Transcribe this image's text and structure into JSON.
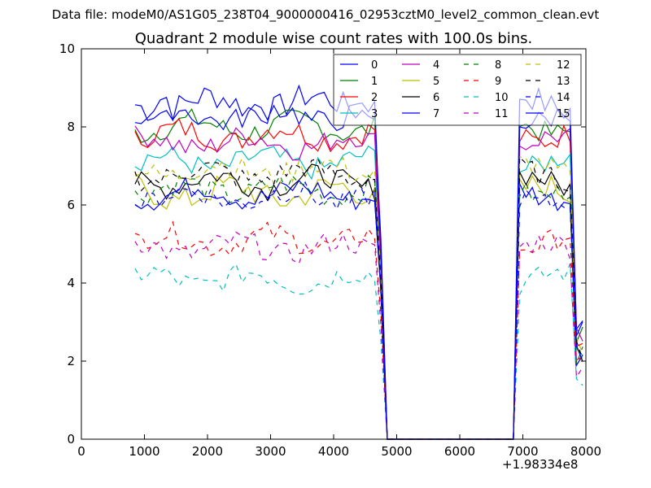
{
  "suptitle": "Data file: modeM0/AS1G05_238T04_9000000416_02953cztM0_level2_common_clean.evt",
  "chart_data": {
    "type": "line",
    "title": "Quadrant 2 module wise count rates with 100.0s bins.",
    "xlabel": "",
    "ylabel": "",
    "x_offset_label": "+1.98334e8",
    "xlim": [
      0,
      8000
    ],
    "ylim": [
      0,
      10
    ],
    "xticks": [
      0,
      1000,
      2000,
      3000,
      4000,
      5000,
      6000,
      7000,
      8000
    ],
    "yticks": [
      0,
      2,
      4,
      6,
      8,
      10
    ],
    "grid": false,
    "legend_placement": "top-right",
    "legend_columns": 4,
    "x_start": 850,
    "x_step": 100,
    "series": [
      {
        "name": "0",
        "color": "#0000ff",
        "dash": "solid",
        "base": 8.6,
        "amp": 0.35
      },
      {
        "name": "1",
        "color": "#007f00",
        "dash": "solid",
        "base": 8.0,
        "amp": 0.3
      },
      {
        "name": "2",
        "color": "#ff0000",
        "dash": "solid",
        "base": 7.8,
        "amp": 0.3
      },
      {
        "name": "3",
        "color": "#00bfbf",
        "dash": "solid",
        "base": 7.1,
        "amp": 0.3
      },
      {
        "name": "4",
        "color": "#bf00bf",
        "dash": "solid",
        "base": 7.6,
        "amp": 0.3
      },
      {
        "name": "5",
        "color": "#bfbf00",
        "dash": "solid",
        "base": 6.3,
        "amp": 0.35
      },
      {
        "name": "6",
        "color": "#000000",
        "dash": "solid",
        "base": 6.6,
        "amp": 0.3
      },
      {
        "name": "7",
        "color": "#0000ff",
        "dash": "solid",
        "base": 6.3,
        "amp": 0.3
      },
      {
        "name": "8",
        "color": "#007f00",
        "dash": "dashed",
        "base": 6.4,
        "amp": 0.3
      },
      {
        "name": "9",
        "color": "#ff0000",
        "dash": "dashed",
        "base": 5.1,
        "amp": 0.3
      },
      {
        "name": "10",
        "color": "#00bfbf",
        "dash": "dashed",
        "base": 4.1,
        "amp": 0.3
      },
      {
        "name": "11",
        "color": "#bf00bf",
        "dash": "dashed",
        "base": 4.9,
        "amp": 0.3
      },
      {
        "name": "12",
        "color": "#bfbf00",
        "dash": "dashed",
        "base": 6.9,
        "amp": 0.3
      },
      {
        "name": "13",
        "color": "#000000",
        "dash": "dashed",
        "base": 6.8,
        "amp": 0.3
      },
      {
        "name": "14",
        "color": "#0000ff",
        "dash": "dashed",
        "base": 6.2,
        "amp": 0.3
      },
      {
        "name": "15",
        "color": "#0000ff",
        "dash": "solid",
        "base": 8.3,
        "amp": 0.3
      }
    ],
    "gap": {
      "x_from": 4850,
      "x_to": 6850
    }
  }
}
